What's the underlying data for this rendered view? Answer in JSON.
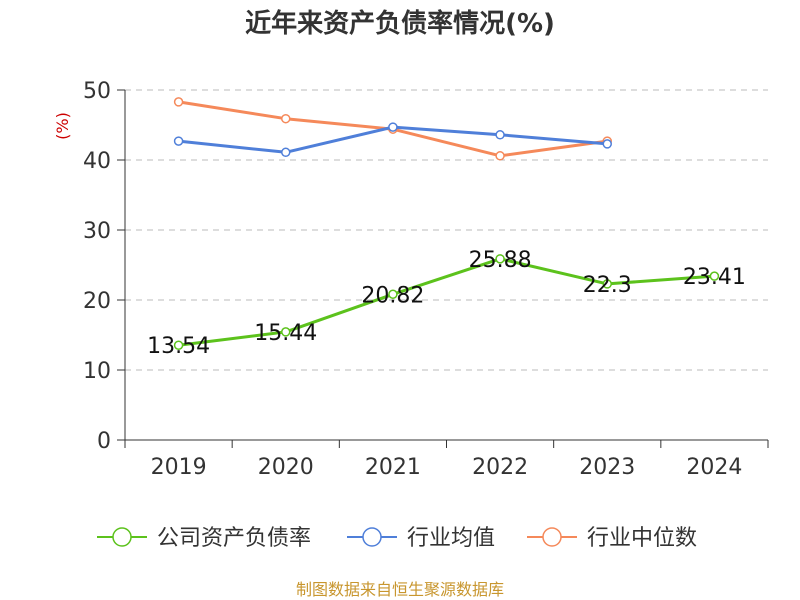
{
  "chart_data": {
    "type": "line",
    "title": "近年来资产负债率情况(%)",
    "ylabel": "(%)",
    "xlabel": "",
    "categories": [
      "2019",
      "2020",
      "2021",
      "2022",
      "2023",
      "2024"
    ],
    "ylim": [
      0,
      50
    ],
    "yticks": [
      0,
      10,
      20,
      30,
      40,
      50
    ],
    "grid": true,
    "legend_position": "bottom",
    "series": [
      {
        "name": "公司资产负债率",
        "color": "#5cc21c",
        "values": [
          13.54,
          15.44,
          20.82,
          25.88,
          22.3,
          23.41
        ],
        "labels": [
          "13.54",
          "15.44",
          "20.82",
          "25.88",
          "22.3",
          "23.41"
        ]
      },
      {
        "name": "行业均值",
        "color": "#4f7fd9",
        "values": [
          42.7,
          41.1,
          44.7,
          43.6,
          42.3,
          null
        ]
      },
      {
        "name": "行业中位数",
        "color": "#f5895a",
        "values": [
          48.3,
          45.9,
          44.4,
          40.6,
          42.7,
          null
        ]
      }
    ]
  },
  "source": "制图数据来自恒生聚源数据库"
}
